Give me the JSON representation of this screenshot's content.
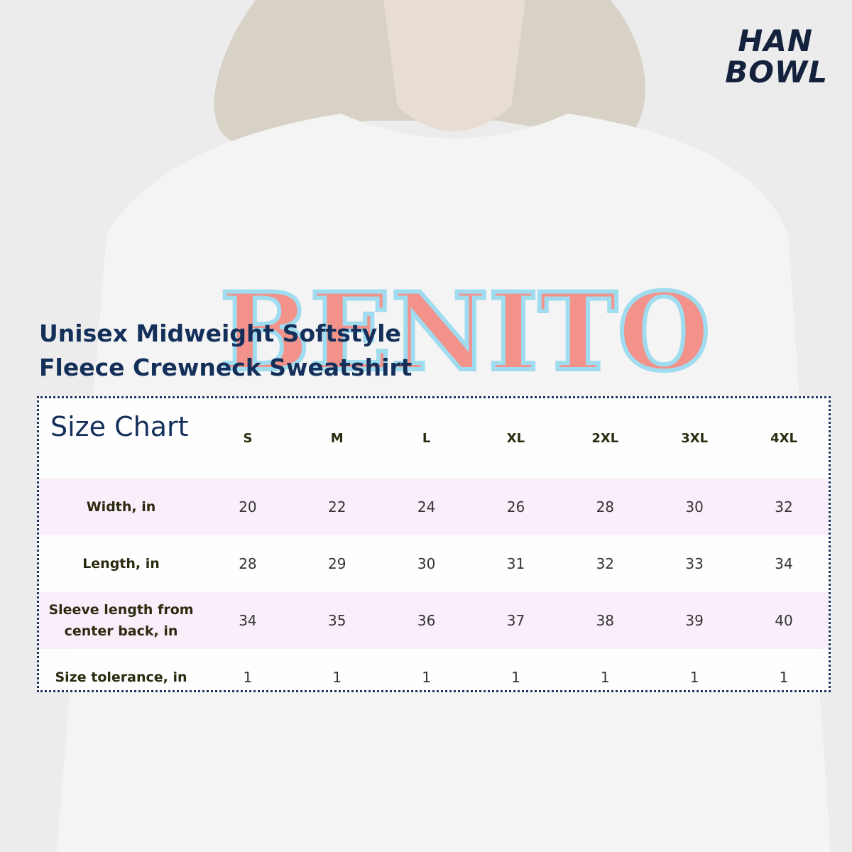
{
  "logo": {
    "line1": "HAN",
    "line2": "BOWL"
  },
  "shirt_print": "BENITO",
  "title": [
    "Unisex Midweight Softstyle",
    "Fleece Crewneck Sweatshirt"
  ],
  "table": {
    "caption": "Size Chart",
    "columns": [
      "S",
      "M",
      "L",
      "XL",
      "2XL",
      "3XL",
      "4XL"
    ],
    "rows": [
      {
        "label": "Width, in",
        "values": [
          20,
          22,
          24,
          26,
          28,
          30,
          32
        ]
      },
      {
        "label": "Length, in",
        "values": [
          28,
          29,
          30,
          31,
          32,
          33,
          34
        ]
      },
      {
        "label": "Sleeve length from center back, in",
        "values": [
          34,
          35,
          36,
          37,
          38,
          39,
          40
        ]
      },
      {
        "label": "Size tolerance, in",
        "values": [
          1,
          1,
          1,
          1,
          1,
          1,
          1
        ]
      }
    ]
  }
}
